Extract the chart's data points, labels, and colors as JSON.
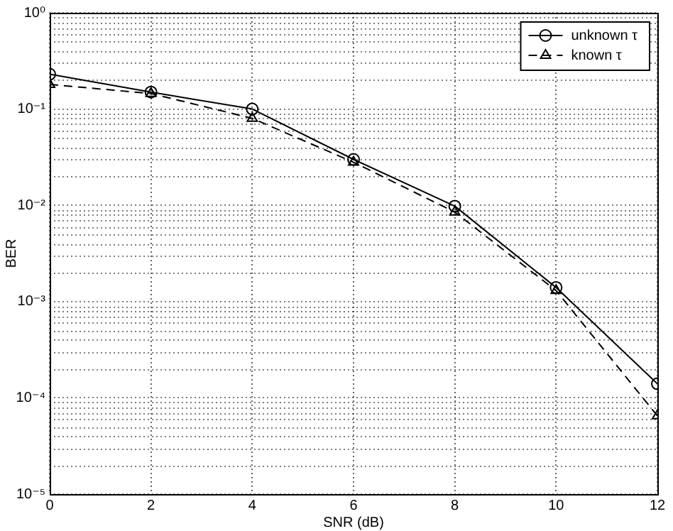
{
  "chart_data": {
    "type": "line",
    "xlabel": "SNR (dB)",
    "ylabel": "BER",
    "x": [
      0,
      2,
      4,
      6,
      8,
      10,
      12
    ],
    "series": [
      {
        "name": "unknown τ",
        "color": "#000000",
        "marker": "circle",
        "line_style": "solid",
        "values": [
          0.23,
          0.15,
          0.1,
          0.03,
          0.0098,
          0.0014,
          0.00014
        ]
      },
      {
        "name": "known τ",
        "color": "#000000",
        "marker": "triangle",
        "line_style": "dashed",
        "values": [
          0.18,
          0.145,
          0.08,
          0.028,
          0.0085,
          0.0013,
          6.5e-05
        ]
      }
    ],
    "xlim": [
      0,
      12
    ],
    "xticks": [
      0,
      2,
      4,
      6,
      8,
      10,
      12
    ],
    "ylim": [
      1e-05,
      1
    ],
    "yticks": [
      {
        "value": 1e-05,
        "label": "10⁻⁵"
      },
      {
        "value": 0.0001,
        "label": "10⁻⁴"
      },
      {
        "value": 0.001,
        "label": "10⁻³"
      },
      {
        "value": 0.01,
        "label": "10⁻²"
      },
      {
        "value": 0.1,
        "label": "10⁻¹"
      },
      {
        "value": 1,
        "label": "10⁰"
      }
    ],
    "log": "y",
    "grid": true,
    "legend": "top right"
  }
}
